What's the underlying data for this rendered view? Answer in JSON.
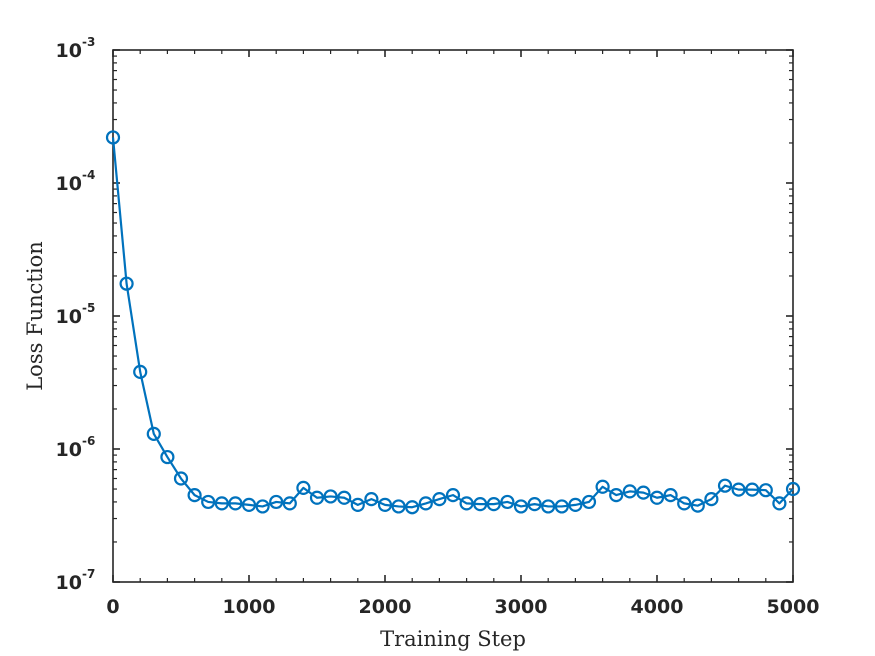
{
  "chart_data": {
    "type": "line",
    "xlabel": "Training Step",
    "ylabel": "Loss Function",
    "xlim": [
      0,
      5000
    ],
    "ylim": [
      1e-07,
      0.001
    ],
    "yscale": "log",
    "x_ticks": [
      0,
      1000,
      2000,
      3000,
      4000,
      5000
    ],
    "x_tick_labels": [
      "0",
      "1000",
      "2000",
      "3000",
      "4000",
      "5000"
    ],
    "y_ticks": [
      1e-07,
      1e-06,
      1e-05,
      0.0001,
      0.001
    ],
    "y_tick_labels": [
      {
        "base": "10",
        "exp": "-7"
      },
      {
        "base": "10",
        "exp": "-6"
      },
      {
        "base": "10",
        "exp": "-5"
      },
      {
        "base": "10",
        "exp": "-4"
      },
      {
        "base": "10",
        "exp": "-3"
      }
    ],
    "grid": false,
    "series_color": "#0072BD",
    "axis_color": "#262626",
    "marker": "circle",
    "series": [
      {
        "x": [
          0,
          100,
          200,
          300,
          400,
          500,
          600,
          700,
          800,
          900,
          1000,
          1100,
          1200,
          1300,
          1400,
          1500,
          1600,
          1700,
          1800,
          1900,
          2000,
          2100,
          2200,
          2300,
          2400,
          2500,
          2600,
          2700,
          2800,
          2900,
          3000,
          3100,
          3200,
          3300,
          3400,
          3500,
          3600,
          3700,
          3800,
          3900,
          4000,
          4100,
          4200,
          4300,
          4400,
          4500,
          4600,
          4700,
          4800,
          4900,
          5000
        ],
        "values": [
          0.00022,
          1.75e-05,
          3.8e-06,
          1.3e-06,
          8.7e-07,
          6e-07,
          4.5e-07,
          4e-07,
          3.9e-07,
          3.9e-07,
          3.8e-07,
          3.7e-07,
          4e-07,
          3.9e-07,
          5.1e-07,
          4.3e-07,
          4.4e-07,
          4.3e-07,
          3.8e-07,
          4.2e-07,
          3.8e-07,
          3.7e-07,
          3.65e-07,
          3.9e-07,
          4.2e-07,
          4.5e-07,
          3.9e-07,
          3.85e-07,
          3.85e-07,
          4e-07,
          3.7e-07,
          3.85e-07,
          3.7e-07,
          3.7e-07,
          3.8e-07,
          4e-07,
          5.2e-07,
          4.5e-07,
          4.8e-07,
          4.7e-07,
          4.3e-07,
          4.5e-07,
          3.9e-07,
          3.75e-07,
          4.2e-07,
          5.3e-07,
          4.95e-07,
          4.95e-07,
          4.9e-07,
          3.9e-07,
          5e-07
        ]
      }
    ]
  }
}
